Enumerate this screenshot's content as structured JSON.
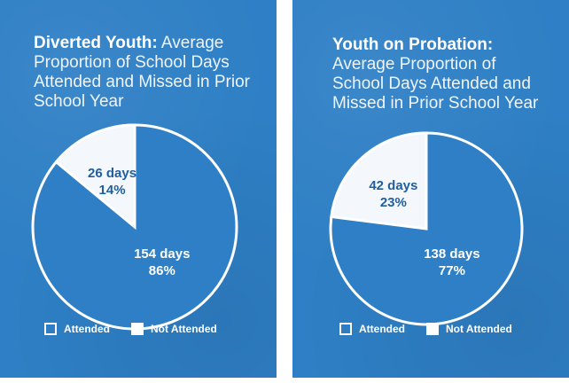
{
  "chart_data": [
    {
      "type": "pie",
      "title_bold": "Diverted Youth:",
      "title_rest": " Average Proportion of School Days Attended and Missed in Prior School Year",
      "slices": [
        {
          "name": "Not Attended",
          "days": 26,
          "percent": 14,
          "label_days": "26 days",
          "label_pct": "14%"
        },
        {
          "name": "Attended",
          "days": 154,
          "percent": 86,
          "label_days": "154 days",
          "label_pct": "86%"
        }
      ],
      "legend": {
        "attended": "Attended",
        "not_attended": "Not Attended"
      }
    },
    {
      "type": "pie",
      "title_bold": "Youth on Probation:",
      "title_rest": " Average Proportion of School Days Attended and Missed in Prior School Year",
      "slices": [
        {
          "name": "Not Attended",
          "days": 42,
          "percent": 23,
          "label_days": "42 days",
          "label_pct": "23%"
        },
        {
          "name": "Attended",
          "days": 138,
          "percent": 77,
          "label_days": "138 days",
          "label_pct": "77%"
        }
      ],
      "legend": {
        "attended": "Attended",
        "not_attended": "Not Attended"
      }
    }
  ],
  "colors": {
    "panel": "#2e7fc5",
    "attended_fill": "#2e7fc5",
    "not_attended_fill": "#f4f7fb",
    "label_on_white": "#1f5f9e",
    "label_on_blue": "#ffffff"
  }
}
